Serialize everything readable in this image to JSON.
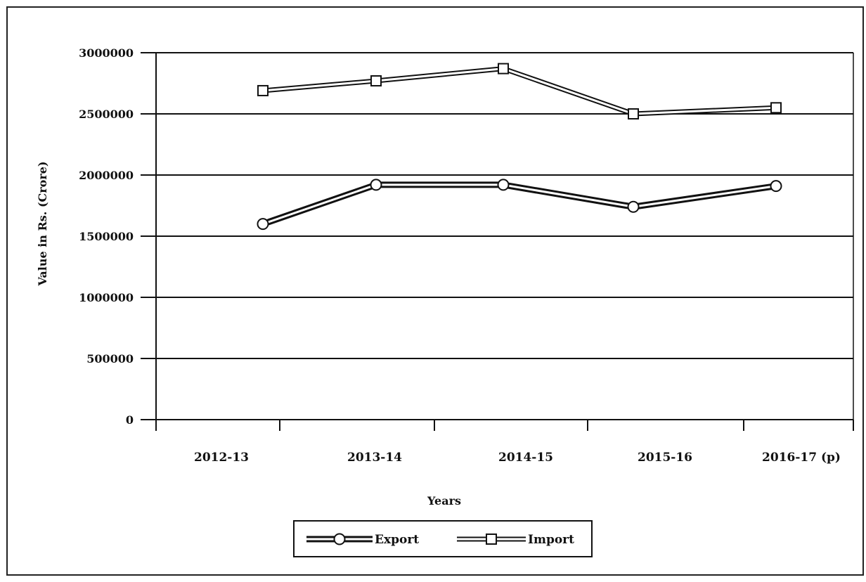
{
  "chart_data": {
    "type": "line",
    "xlabel": "Years",
    "ylabel": "Value in Rs. (Crore)",
    "categories": [
      "2012-13",
      "2013-14",
      "2014-15",
      "2015-16",
      "2016-17 (p)"
    ],
    "ylim": [
      0,
      3000000
    ],
    "yticks": [
      0,
      500000,
      1000000,
      1500000,
      2000000,
      2500000,
      3000000
    ],
    "ytick_labels": [
      "0",
      "500000",
      "1000000",
      "1500000",
      "2000000",
      "2500000",
      "3000000"
    ],
    "grid": true,
    "legend_position": "bottom",
    "series": [
      {
        "name": "Export",
        "marker": "circle",
        "values": [
          1600000,
          1920000,
          1920000,
          1740000,
          1910000
        ]
      },
      {
        "name": "Import",
        "marker": "square",
        "values": [
          2690000,
          2770000,
          2870000,
          2500000,
          2550000
        ]
      }
    ]
  }
}
